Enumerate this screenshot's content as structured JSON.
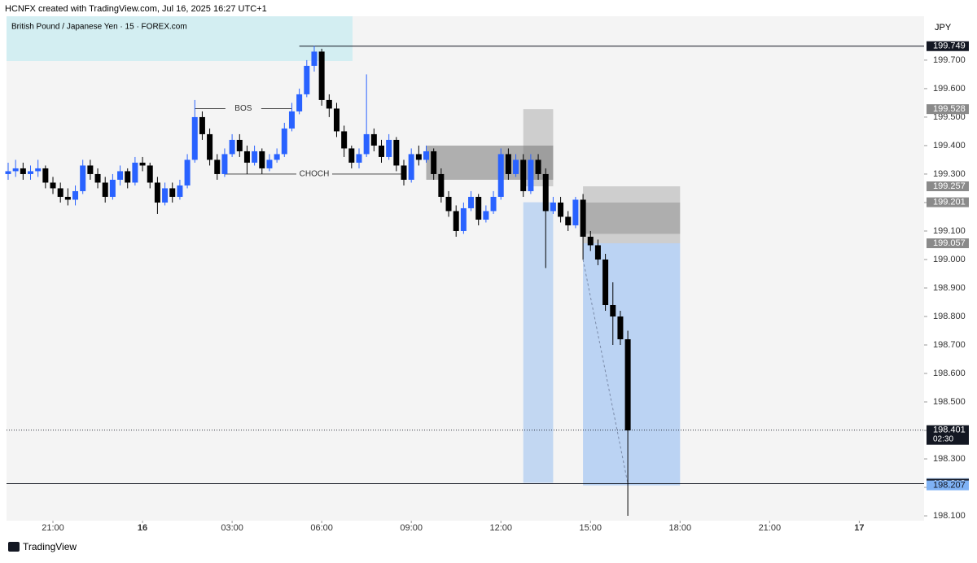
{
  "header": {
    "title": "HCNFX created with TradingView.com, Jul 16, 2025 16:27 UTC+1",
    "symbol": "British Pound / Japanese Yen · 15 · FOREX.com",
    "currency": "JPY"
  },
  "footer": {
    "brand": "TradingView"
  },
  "chart_data": {
    "type": "candlestick",
    "x": [
      "19:30",
      "19:45",
      "20:00",
      "20:15",
      "20:30",
      "20:45",
      "21:00",
      "21:15",
      "21:30",
      "21:45",
      "22:00",
      "22:15",
      "22:30",
      "22:45",
      "23:00",
      "23:15",
      "23:30",
      "23:45",
      "00:00",
      "00:15",
      "00:30",
      "00:45",
      "01:00",
      "01:15",
      "01:30",
      "01:45",
      "02:00",
      "02:15",
      "02:30",
      "02:45",
      "03:00",
      "03:15",
      "03:30",
      "03:45",
      "04:00",
      "04:15",
      "04:30",
      "04:45",
      "05:00",
      "05:15",
      "05:30",
      "05:45",
      "06:00",
      "06:15",
      "06:30",
      "06:45",
      "07:00",
      "07:15",
      "07:30",
      "07:45",
      "08:00",
      "08:15",
      "08:30",
      "08:45",
      "09:00",
      "09:15",
      "09:30",
      "09:45",
      "10:00",
      "10:15",
      "10:30",
      "10:45",
      "11:00",
      "11:15",
      "11:30",
      "11:45",
      "12:00",
      "12:15",
      "12:30",
      "12:45",
      "13:00",
      "13:15",
      "13:30",
      "13:45",
      "14:00",
      "14:15",
      "14:30",
      "14:45",
      "15:00",
      "15:15",
      "15:30",
      "15:45",
      "16:00",
      "16:15"
    ],
    "ohlc": [
      [
        199.3,
        199.34,
        199.28,
        199.31
      ],
      [
        199.31,
        199.35,
        199.29,
        199.32
      ],
      [
        199.32,
        199.34,
        199.28,
        199.3
      ],
      [
        199.3,
        199.33,
        199.28,
        199.31
      ],
      [
        199.31,
        199.35,
        199.29,
        199.32
      ],
      [
        199.32,
        199.33,
        199.25,
        199.27
      ],
      [
        199.27,
        199.29,
        199.23,
        199.25
      ],
      [
        199.25,
        199.27,
        199.2,
        199.22
      ],
      [
        199.22,
        199.25,
        199.19,
        199.21
      ],
      [
        199.21,
        199.26,
        199.19,
        199.24
      ],
      [
        199.24,
        199.35,
        199.23,
        199.33
      ],
      [
        199.33,
        199.35,
        199.28,
        199.3
      ],
      [
        199.3,
        199.32,
        199.25,
        199.27
      ],
      [
        199.27,
        199.29,
        199.2,
        199.22
      ],
      [
        199.22,
        199.3,
        199.21,
        199.28
      ],
      [
        199.28,
        199.33,
        199.26,
        199.31
      ],
      [
        199.31,
        199.32,
        199.25,
        199.27
      ],
      [
        199.27,
        199.36,
        199.26,
        199.34
      ],
      [
        199.34,
        199.36,
        199.31,
        199.33
      ],
      [
        199.33,
        199.34,
        199.25,
        199.27
      ],
      [
        199.27,
        199.29,
        199.16,
        199.2
      ],
      [
        199.2,
        199.27,
        199.19,
        199.25
      ],
      [
        199.25,
        199.27,
        199.2,
        199.22
      ],
      [
        199.22,
        199.28,
        199.21,
        199.26
      ],
      [
        199.26,
        199.37,
        199.25,
        199.35
      ],
      [
        199.35,
        199.56,
        199.34,
        199.5
      ],
      [
        199.5,
        199.52,
        199.42,
        199.44
      ],
      [
        199.44,
        199.46,
        199.33,
        199.35
      ],
      [
        199.35,
        199.37,
        199.28,
        199.3
      ],
      [
        199.3,
        199.39,
        199.29,
        199.37
      ],
      [
        199.37,
        199.44,
        199.36,
        199.42
      ],
      [
        199.42,
        199.44,
        199.36,
        199.38
      ],
      [
        199.38,
        199.4,
        199.3,
        199.34
      ],
      [
        199.34,
        199.4,
        199.33,
        199.38
      ],
      [
        199.38,
        199.39,
        199.3,
        199.32
      ],
      [
        199.32,
        199.37,
        199.31,
        199.35
      ],
      [
        199.35,
        199.39,
        199.34,
        199.37
      ],
      [
        199.37,
        199.48,
        199.36,
        199.46
      ],
      [
        199.46,
        199.55,
        199.45,
        199.52
      ],
      [
        199.52,
        199.6,
        199.51,
        199.58
      ],
      [
        199.58,
        199.7,
        199.57,
        199.68
      ],
      [
        199.68,
        199.75,
        199.66,
        199.73
      ],
      [
        199.73,
        199.74,
        199.54,
        199.56
      ],
      [
        199.56,
        199.58,
        199.5,
        199.53
      ],
      [
        199.53,
        199.55,
        199.43,
        199.45
      ],
      [
        199.45,
        199.47,
        199.36,
        199.39
      ],
      [
        199.39,
        199.4,
        199.32,
        199.34
      ],
      [
        199.34,
        199.39,
        199.32,
        199.37
      ],
      [
        199.37,
        199.65,
        199.36,
        199.44
      ],
      [
        199.44,
        199.46,
        199.38,
        199.4
      ],
      [
        199.4,
        199.42,
        199.34,
        199.36
      ],
      [
        199.36,
        199.44,
        199.35,
        199.42
      ],
      [
        199.42,
        199.43,
        199.31,
        199.33
      ],
      [
        199.33,
        199.35,
        199.26,
        199.28
      ],
      [
        199.28,
        199.39,
        199.27,
        199.37
      ],
      [
        199.37,
        199.4,
        199.33,
        199.35
      ],
      [
        199.35,
        199.4,
        199.34,
        199.38
      ],
      [
        199.38,
        199.39,
        199.28,
        199.3
      ],
      [
        199.3,
        199.32,
        199.2,
        199.22
      ],
      [
        199.22,
        199.24,
        199.15,
        199.17
      ],
      [
        199.17,
        199.19,
        199.08,
        199.1
      ],
      [
        199.1,
        199.2,
        199.09,
        199.18
      ],
      [
        199.18,
        199.24,
        199.17,
        199.22
      ],
      [
        199.22,
        199.23,
        199.12,
        199.14
      ],
      [
        199.14,
        199.19,
        199.13,
        199.17
      ],
      [
        199.17,
        199.24,
        199.16,
        199.22
      ],
      [
        199.22,
        199.39,
        199.21,
        199.37
      ],
      [
        199.37,
        199.39,
        199.28,
        199.3
      ],
      [
        199.3,
        199.37,
        199.29,
        199.35
      ],
      [
        199.35,
        199.37,
        199.22,
        199.24
      ],
      [
        199.24,
        199.37,
        199.23,
        199.35
      ],
      [
        199.35,
        199.37,
        199.28,
        199.3
      ],
      [
        199.3,
        199.32,
        198.97,
        199.17
      ],
      [
        199.17,
        199.22,
        199.16,
        199.2
      ],
      [
        199.2,
        199.22,
        199.13,
        199.15
      ],
      [
        199.15,
        199.17,
        199.1,
        199.12
      ],
      [
        199.12,
        199.22,
        199.11,
        199.21
      ],
      [
        199.21,
        199.23,
        199.0,
        199.08
      ],
      [
        199.08,
        199.1,
        199.03,
        199.05
      ],
      [
        199.05,
        199.07,
        198.98,
        199.0
      ],
      [
        199.0,
        199.02,
        198.82,
        198.84
      ],
      [
        198.84,
        198.92,
        198.7,
        198.8
      ],
      [
        198.8,
        198.82,
        198.7,
        198.72
      ],
      [
        198.72,
        198.75,
        198.1,
        198.4
      ]
    ],
    "up_color": "#2962ff",
    "down_color": "#000000",
    "ylim": [
      198.083,
      199.854
    ],
    "yticks": [
      {
        "value": 198.1,
        "label": "198.100"
      },
      {
        "value": 198.2,
        "label": "198.200"
      },
      {
        "value": 198.3,
        "label": "198.300"
      },
      {
        "value": 198.4,
        "label": "198.400"
      },
      {
        "value": 198.5,
        "label": "198.500"
      },
      {
        "value": 198.6,
        "label": "198.600"
      },
      {
        "value": 198.7,
        "label": "198.700"
      },
      {
        "value": 198.8,
        "label": "198.800"
      },
      {
        "value": 198.9,
        "label": "198.900"
      },
      {
        "value": 199.0,
        "label": "199.000"
      },
      {
        "value": 199.1,
        "label": "199.100"
      },
      {
        "value": 199.2,
        "label": "199.200"
      },
      {
        "value": 199.3,
        "label": "199.300"
      },
      {
        "value": 199.4,
        "label": "199.400"
      },
      {
        "value": 199.5,
        "label": "199.500"
      },
      {
        "value": 199.6,
        "label": "199.600"
      },
      {
        "value": 199.7,
        "label": "199.700"
      }
    ],
    "xticks": [
      "21:00",
      {
        "value": "00:00",
        "label": "16"
      },
      "03:00",
      "06:00",
      "09:00",
      "12:00",
      "15:00",
      "18:00",
      "21:00",
      {
        "value": "00:00",
        "label": "17"
      }
    ],
    "price_labels": [
      {
        "value": 199.749,
        "style": "dark",
        "line": "solid",
        "line_from": "05:15"
      },
      {
        "value": 199.528,
        "style": "gray"
      },
      {
        "value": 199.257,
        "style": "gray"
      },
      {
        "value": 199.201,
        "style": "gray"
      },
      {
        "value": 199.057,
        "style": "gray"
      },
      {
        "value": 198.401,
        "style": "dark",
        "line": "dotted",
        "countdown": "02:30"
      },
      {
        "value": 198.216,
        "style": "light"
      },
      {
        "value": 198.213,
        "style": "dark",
        "line": "solid"
      },
      {
        "value": 198.207,
        "style": "blue"
      }
    ],
    "zones": [
      {
        "from": "09:30",
        "to": "13:45",
        "top": 199.4,
        "bottom": 199.28,
        "color": "rgba(90,90,90,0.45)"
      },
      {
        "from": "12:45",
        "to": "13:45",
        "top": 199.528,
        "bottom": 199.257,
        "color": "rgba(120,120,120,0.3)"
      },
      {
        "from": "12:45",
        "to": "13:45",
        "top": 199.201,
        "bottom": 198.216,
        "color": "rgba(80,150,240,0.3)"
      },
      {
        "from": "14:45",
        "to": "18:00",
        "top": 199.257,
        "bottom": 199.057,
        "color": "rgba(120,120,120,0.3)"
      },
      {
        "from": "14:45",
        "to": "18:00",
        "top": 199.2,
        "bottom": 199.09,
        "color": "rgba(100,100,100,0.3)"
      },
      {
        "from": "14:45",
        "to": "18:00",
        "top": 199.057,
        "bottom": 198.207,
        "color": "rgba(80,150,240,0.35)"
      }
    ],
    "annotations": [
      {
        "text": "BOS",
        "price": 199.53,
        "from": "01:45",
        "to": "05:00"
      },
      {
        "text": "CHOCH",
        "price": 199.3,
        "from": "02:45",
        "to": "08:45"
      }
    ],
    "trend": {
      "from": "14:45",
      "to": "16:15",
      "start": 199.0,
      "end": 198.213
    }
  }
}
